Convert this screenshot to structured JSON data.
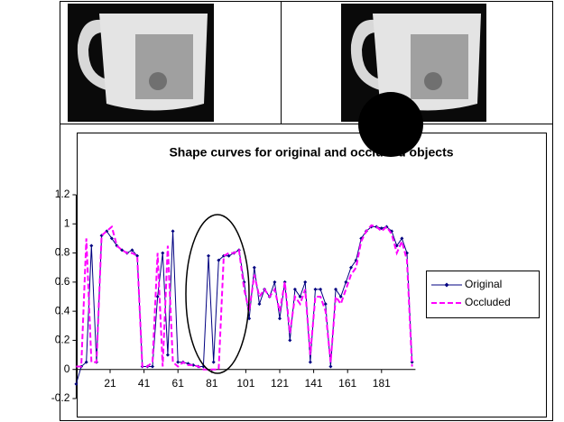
{
  "chart_data": {
    "type": "line",
    "title": "Shape curves for original and occluded objects",
    "x": [
      1,
      4,
      7,
      10,
      13,
      16,
      19,
      22,
      25,
      28,
      31,
      34,
      37,
      40,
      43,
      46,
      49,
      52,
      55,
      58,
      61,
      64,
      67,
      70,
      73,
      76,
      79,
      82,
      85,
      88,
      91,
      94,
      97,
      100,
      103,
      106,
      109,
      112,
      115,
      118,
      121,
      124,
      127,
      130,
      133,
      136,
      139,
      142,
      145,
      148,
      151,
      154,
      157,
      160,
      163,
      166,
      169,
      172,
      175,
      178,
      181,
      184,
      187,
      190,
      193,
      196,
      199
    ],
    "series": [
      {
        "name": "Original",
        "color": "#000080",
        "line_style": "solid",
        "markers": true,
        "values": [
          -0.1,
          0.02,
          0.05,
          0.85,
          0.05,
          0.92,
          0.95,
          0.9,
          0.85,
          0.82,
          0.8,
          0.82,
          0.78,
          0.02,
          0.02,
          0.02,
          0.5,
          0.8,
          0.1,
          0.95,
          0.05,
          0.05,
          0.04,
          0.03,
          0.02,
          0.02,
          0.78,
          0.05,
          0.75,
          0.78,
          0.78,
          0.8,
          0.82,
          0.6,
          0.35,
          0.7,
          0.45,
          0.55,
          0.5,
          0.6,
          0.35,
          0.6,
          0.2,
          0.55,
          0.5,
          0.6,
          0.05,
          0.55,
          0.55,
          0.45,
          0.02,
          0.55,
          0.5,
          0.6,
          0.7,
          0.75,
          0.9,
          0.95,
          0.98,
          0.98,
          0.97,
          0.98,
          0.95,
          0.85,
          0.9,
          0.8,
          0.05
        ]
      },
      {
        "name": "Occluded",
        "color": "#ff00ff",
        "line_style": "dashed",
        "markers": false,
        "values": [
          0.02,
          0.02,
          0.9,
          0.05,
          0.05,
          0.92,
          0.95,
          0.98,
          0.85,
          0.82,
          0.8,
          0.8,
          0.78,
          0.02,
          0.02,
          0.05,
          0.8,
          0.02,
          0.85,
          0.05,
          0.02,
          0.05,
          0.03,
          0.03,
          0.02,
          0.0,
          0.0,
          0.0,
          0.0,
          0.78,
          0.8,
          0.8,
          0.82,
          0.55,
          0.4,
          0.65,
          0.5,
          0.55,
          0.5,
          0.55,
          0.4,
          0.6,
          0.25,
          0.5,
          0.45,
          0.55,
          0.1,
          0.5,
          0.5,
          0.4,
          0.05,
          0.5,
          0.45,
          0.55,
          0.65,
          0.7,
          0.88,
          0.95,
          0.99,
          0.98,
          0.95,
          0.98,
          0.93,
          0.8,
          0.88,
          0.75,
          0.02
        ]
      }
    ],
    "xlim": [
      1,
      201
    ],
    "ylim": [
      -0.2,
      1.2
    ],
    "xticks": [
      21,
      41,
      61,
      81,
      101,
      121,
      141,
      161,
      181
    ],
    "yticks": [
      -0.2,
      0,
      0.2,
      0.4,
      0.6,
      0.8,
      1,
      1.2
    ],
    "legend": "right"
  }
}
